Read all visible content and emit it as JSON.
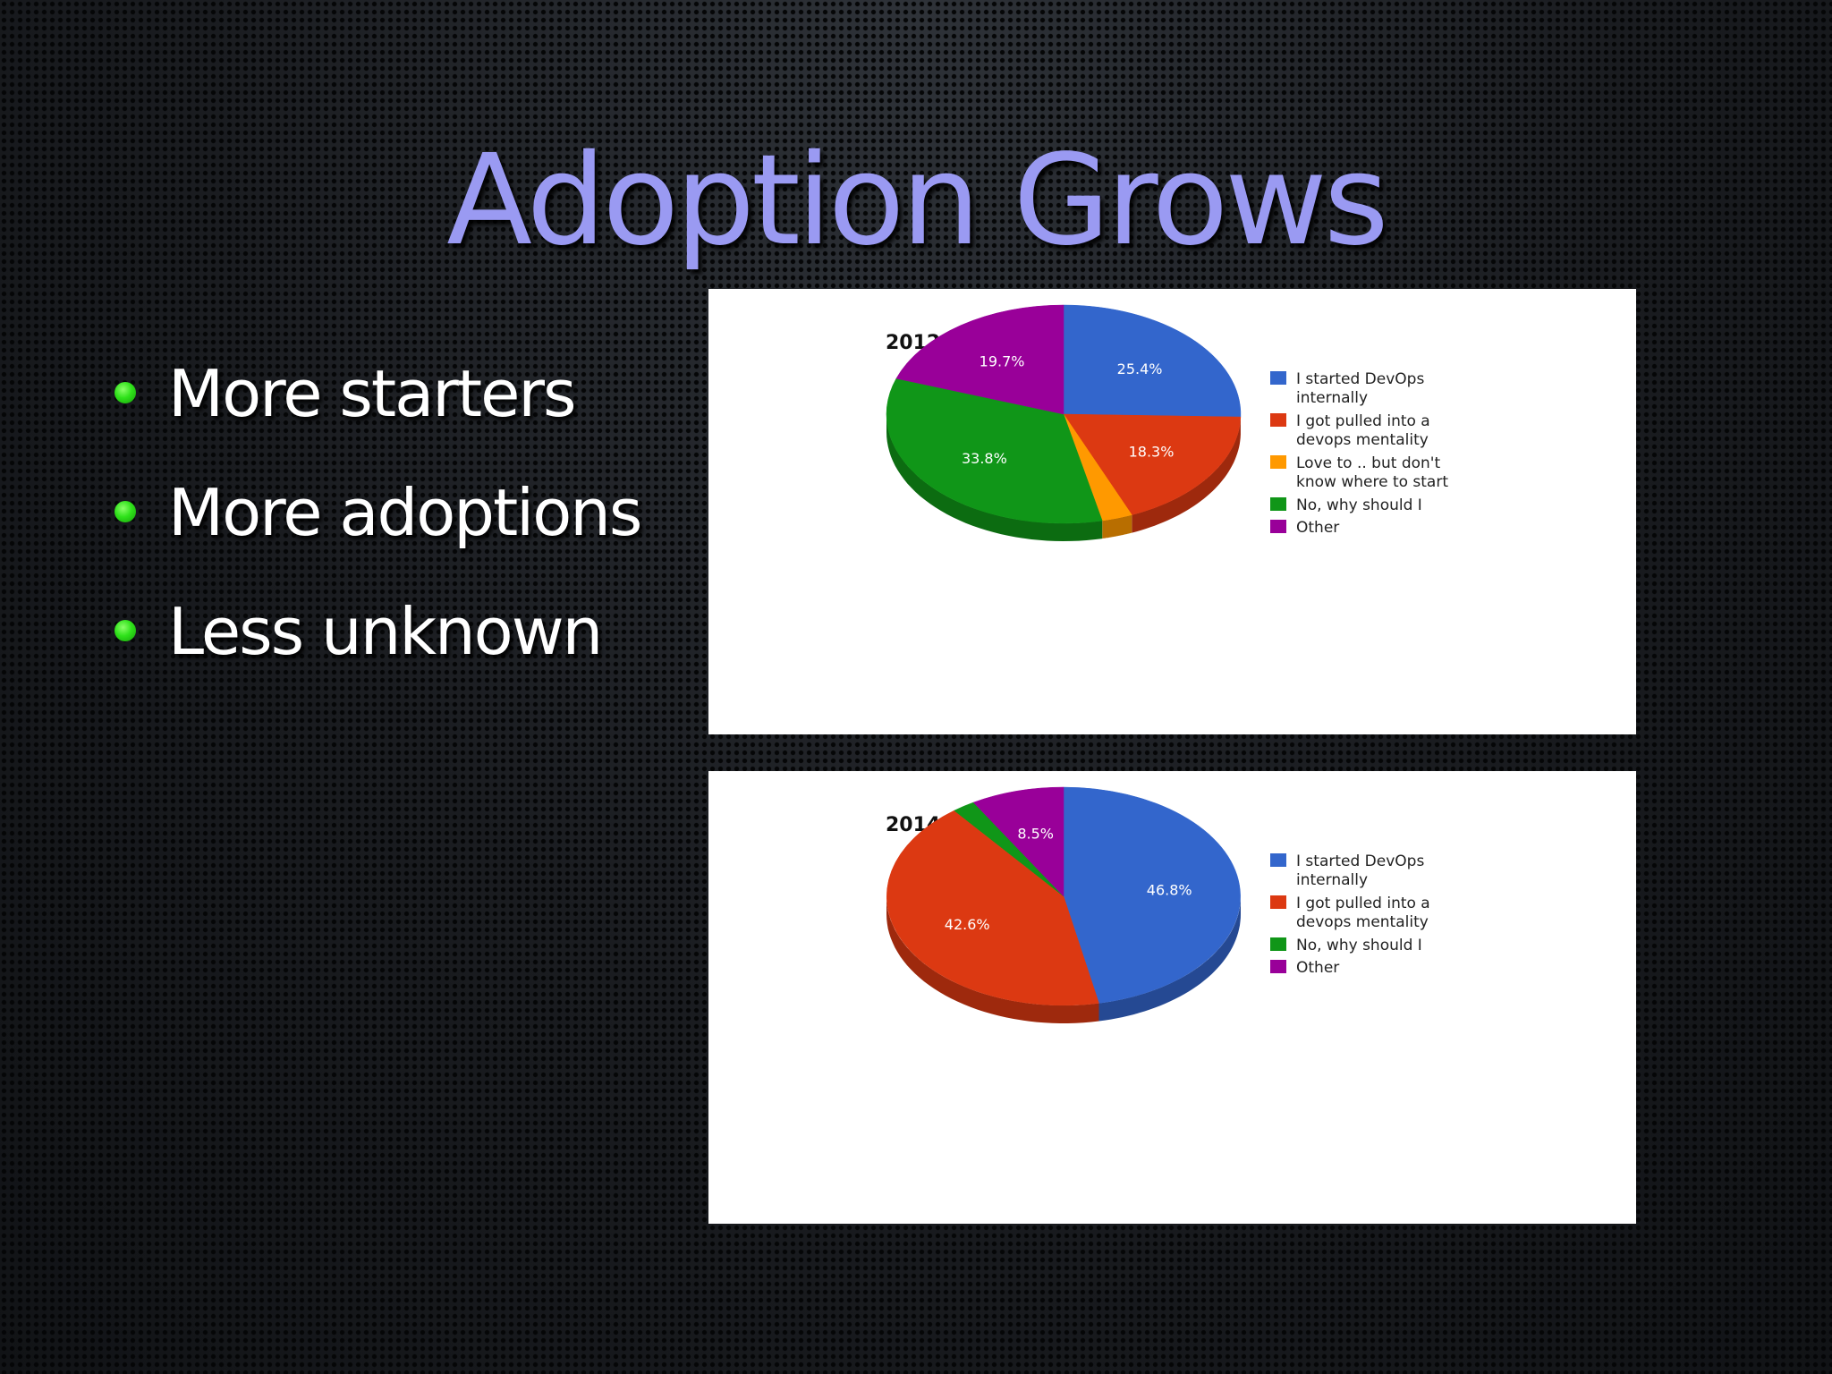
{
  "slide": {
    "title": "Adoption Grows",
    "bullets": [
      "More starters",
      "More adoptions",
      "Less unknown"
    ]
  },
  "colors": {
    "title": "#9a9af2",
    "bullet_dot": "#2fe21a",
    "background": "#15171b"
  },
  "chart_data": [
    {
      "type": "pie",
      "title": "2012 Practice DevOps?",
      "legend_position": "right",
      "slices": [
        {
          "label": "I started DevOps internally",
          "legend_lines": [
            "I started DevOps",
            "internally"
          ],
          "value": 25.4,
          "value_label": "25.4%",
          "color": "#3366cc"
        },
        {
          "label": "I got pulled into a devops mentality",
          "legend_lines": [
            "I got pulled into a",
            "devops mentality"
          ],
          "value": 18.3,
          "value_label": "18.3%",
          "color": "#dc3912"
        },
        {
          "label": "Love to .. but don't know where to start",
          "legend_lines": [
            "Love to .. but don't",
            "know where to start"
          ],
          "value": 2.8,
          "value_label": "",
          "color": "#ff9900"
        },
        {
          "label": "No, why should I",
          "legend_lines": [
            "No, why should I"
          ],
          "value": 33.8,
          "value_label": "33.8%",
          "color": "#109618"
        },
        {
          "label": "Other",
          "legend_lines": [
            "Other"
          ],
          "value": 19.7,
          "value_label": "19.7%",
          "color": "#990099"
        }
      ]
    },
    {
      "type": "pie",
      "title": "2014 Practice DevOps?",
      "legend_position": "right",
      "slices": [
        {
          "label": "I started DevOps internally",
          "legend_lines": [
            "I started DevOps",
            "internally"
          ],
          "value": 46.8,
          "value_label": "46.8%",
          "color": "#3366cc"
        },
        {
          "label": "I got pulled into a devops mentality",
          "legend_lines": [
            "I got pulled into a",
            "devops mentality"
          ],
          "value": 42.6,
          "value_label": "42.6%",
          "color": "#dc3912"
        },
        {
          "label": "No, why should I",
          "legend_lines": [
            "No, why should I"
          ],
          "value": 2.1,
          "value_label": "",
          "color": "#109618"
        },
        {
          "label": "Other",
          "legend_lines": [
            "Other"
          ],
          "value": 8.5,
          "value_label": "8.5%",
          "color": "#990099"
        }
      ]
    }
  ]
}
